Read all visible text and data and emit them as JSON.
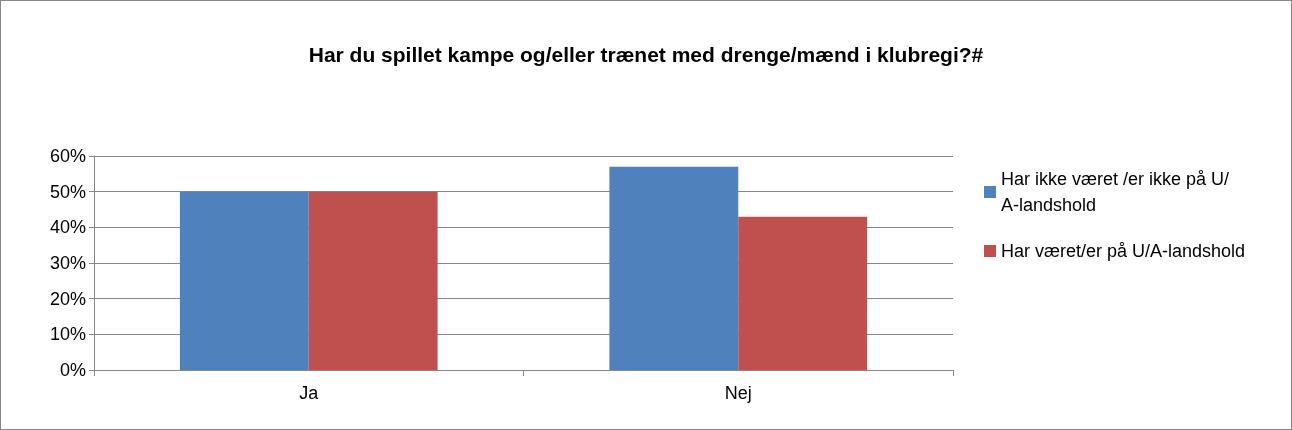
{
  "chart_data": {
    "type": "bar",
    "title": "Har du spillet kampe og/eller trænet med drenge/mænd i klubregi?#",
    "categories": [
      "Ja",
      "Nej"
    ],
    "series": [
      {
        "name": "Har ikke været /er ikke på U/A-landshold",
        "color": "#4f81bd",
        "values": [
          50,
          57
        ]
      },
      {
        "name": "Har været/er på U/A-landshold",
        "color": "#c0504d",
        "values": [
          50,
          43
        ]
      }
    ],
    "ylim": [
      0,
      60
    ],
    "yticks": [
      {
        "value": 0,
        "label": "0%"
      },
      {
        "value": 10,
        "label": "10%"
      },
      {
        "value": 20,
        "label": "20%"
      },
      {
        "value": 30,
        "label": "30%"
      },
      {
        "value": 40,
        "label": "40%"
      },
      {
        "value": 50,
        "label": "50%"
      },
      {
        "value": 60,
        "label": "60%"
      }
    ],
    "grid": "y",
    "legend": "right"
  }
}
